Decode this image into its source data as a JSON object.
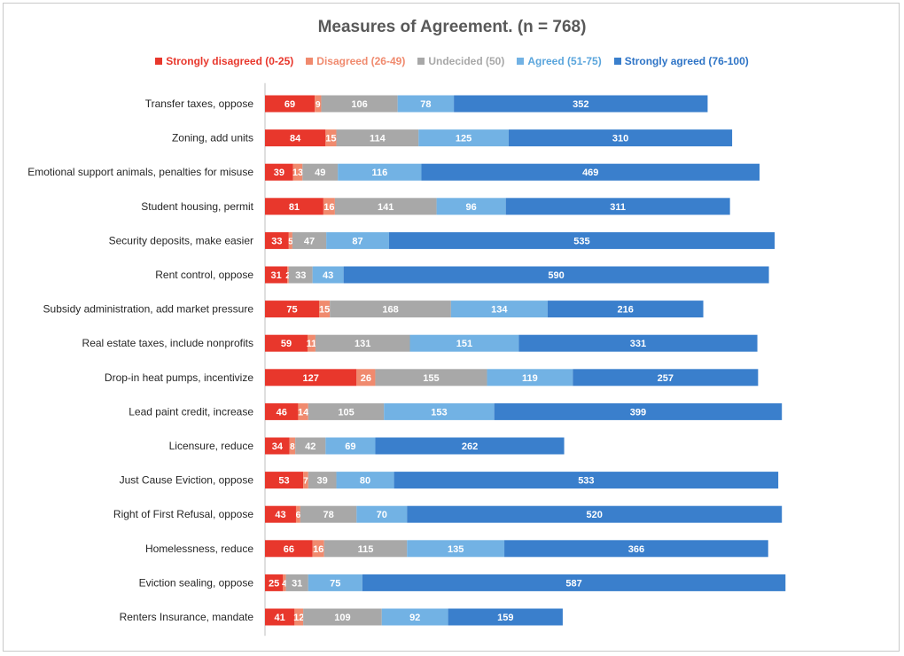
{
  "chart_data": {
    "type": "bar",
    "orientation": "horizontal",
    "stacked": true,
    "title": "Measures of Agreement. (n = 768)",
    "legend_position": "top",
    "grid": false,
    "categories": [
      "Transfer taxes, oppose",
      "Zoning, add units",
      "Emotional support animals, penalties for misuse",
      "Student housing, permit",
      "Security deposits, make easier",
      "Rent control, oppose",
      "Subsidy administration, add market pressure",
      "Real estate taxes, include nonprofits",
      "Drop-in heat pumps, incentivize",
      "Lead paint credit, increase",
      "Licensure, reduce",
      "Just Cause Eviction, oppose",
      "Right of First Refusal, oppose",
      "Homelessness, reduce",
      "Eviction sealing, oppose",
      "Renters Insurance, mandate"
    ],
    "series": [
      {
        "name": "Strongly disagreed (0-25)",
        "color": "#e8372c",
        "legend_color": "#e8372c",
        "values": [
          69,
          84,
          39,
          81,
          33,
          31,
          75,
          59,
          127,
          46,
          34,
          53,
          43,
          66,
          25,
          41
        ]
      },
      {
        "name": "Disagreed (26-49)",
        "color": "#f08a6e",
        "legend_color": "#f08a6e",
        "values": [
          9,
          15,
          13,
          16,
          5,
          2,
          15,
          11,
          26,
          14,
          8,
          7,
          6,
          16,
          4,
          12
        ]
      },
      {
        "name": "Undecided (50)",
        "color": "#a8a8a8",
        "legend_color": "#a8a8a8",
        "values": [
          106,
          114,
          49,
          141,
          47,
          33,
          168,
          131,
          155,
          105,
          42,
          39,
          78,
          115,
          31,
          109
        ]
      },
      {
        "name": "Agreed (51-75)",
        "color": "#72b2e4",
        "legend_color": "#5aa5dc",
        "values": [
          78,
          125,
          116,
          96,
          87,
          43,
          134,
          151,
          119,
          153,
          69,
          80,
          70,
          135,
          75,
          92
        ]
      },
      {
        "name": "Strongly agreed (76-100)",
        "color": "#3a7fcc",
        "legend_color": "#2e74c6",
        "values": [
          352,
          310,
          469,
          311,
          535,
          590,
          216,
          331,
          257,
          399,
          262,
          533,
          520,
          366,
          587,
          159
        ]
      }
    ],
    "xlim": [
      0,
      768
    ]
  }
}
